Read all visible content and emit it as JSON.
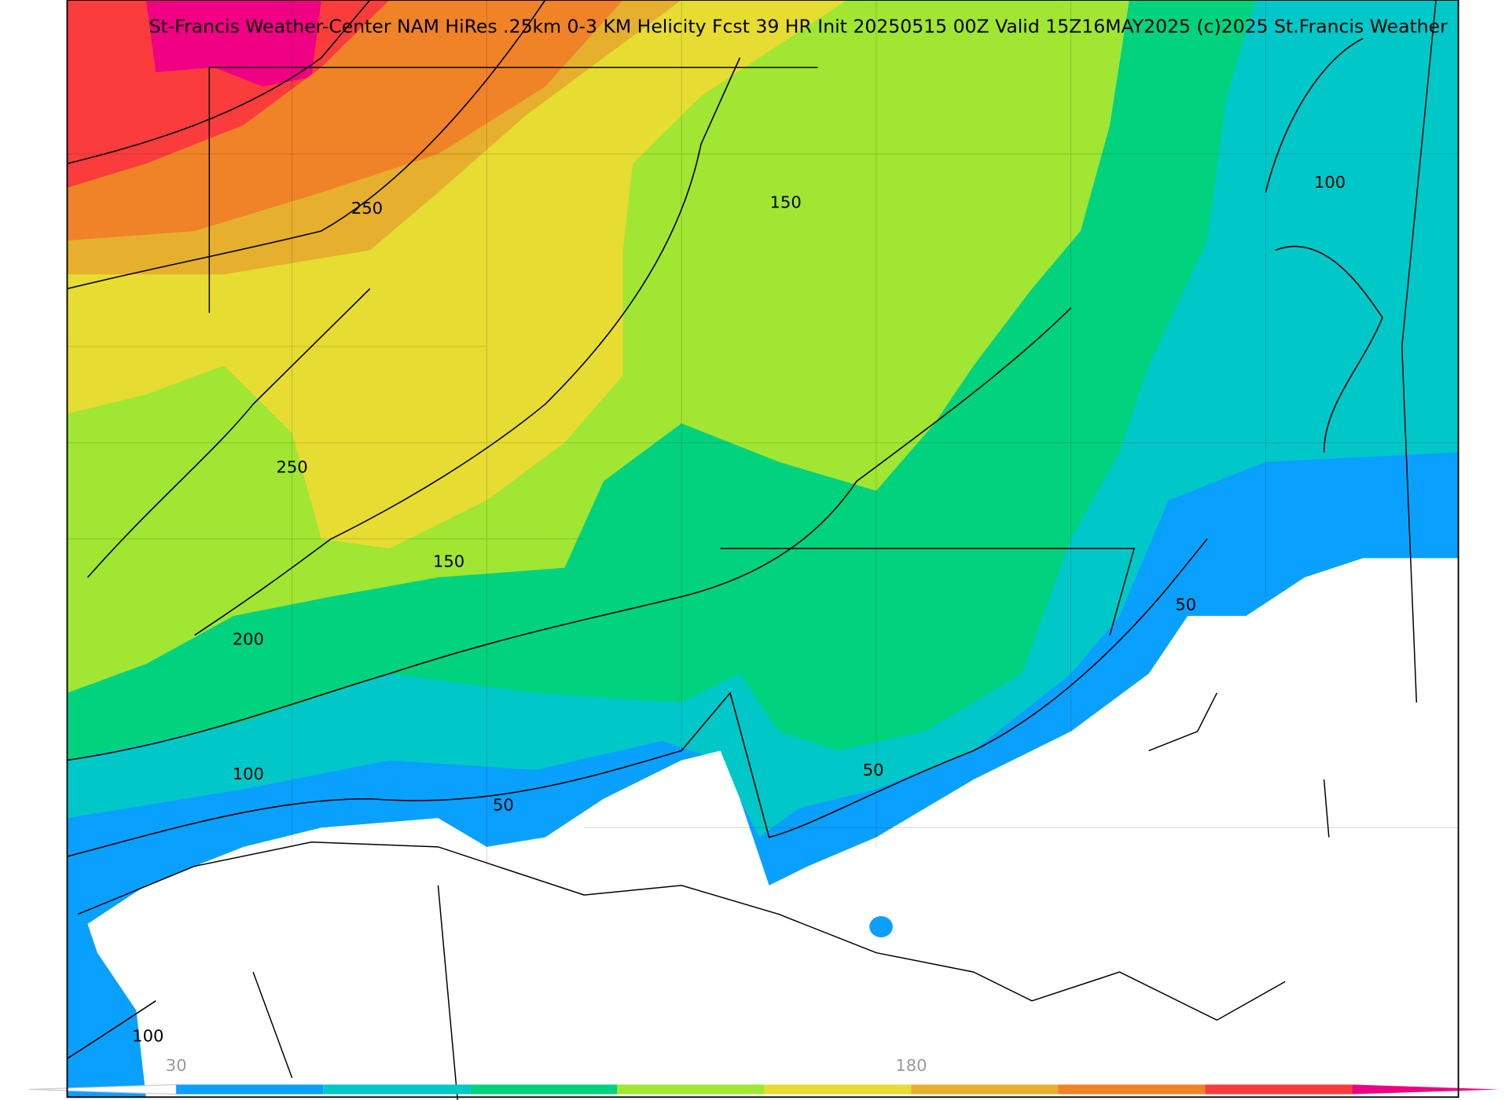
{
  "header": {
    "title": "St-Francis Weather-Center NAM HiRes .25km 0-3 KM Helicity Fcst 39 HR Init 20250515 00Z  Valid 15Z16MAY2025    (c)2025 St.Francis Weather"
  },
  "contour_labels": [
    "250",
    "150",
    "100",
    "250",
    "150",
    "200",
    "50",
    "100",
    "50",
    "50",
    "100"
  ],
  "colorbar": {
    "labels": [
      "30",
      "180"
    ],
    "colors": [
      "#ffffff",
      "#0aa0ff",
      "#00c8c8",
      "#00d27d",
      "#a0e632",
      "#e6dc32",
      "#e6af2d",
      "#f08228",
      "#fa3c3c",
      "#f00082"
    ]
  }
}
